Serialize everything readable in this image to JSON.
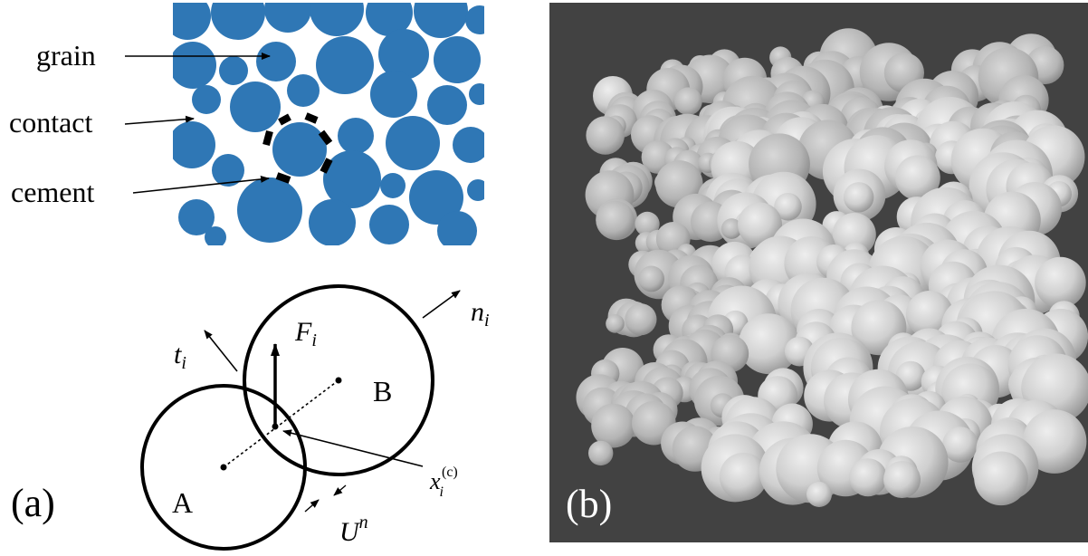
{
  "panel_a": {
    "tag": "(a)",
    "microstructure_labels": {
      "grain": "grain",
      "contact": "contact",
      "cement": "cement"
    },
    "contact_model": {
      "particle_a": "A",
      "particle_b": "B",
      "force_symbol": "F",
      "force_subscript": "i",
      "normal_symbol": "n",
      "normal_subscript": "i",
      "tangent_symbol": "t",
      "tangent_subscript": "i",
      "contact_point_symbol": "x",
      "contact_point_subscript": "i",
      "contact_point_superscript": "(c)",
      "overlap_symbol": "U",
      "overlap_superscript": "n"
    },
    "colors": {
      "grain_fill": "#2f77b5",
      "cement": "#000000"
    }
  },
  "panel_b": {
    "tag": "(b)",
    "colors": {
      "background": "#424242",
      "sphere": "#cfcfcf"
    }
  }
}
